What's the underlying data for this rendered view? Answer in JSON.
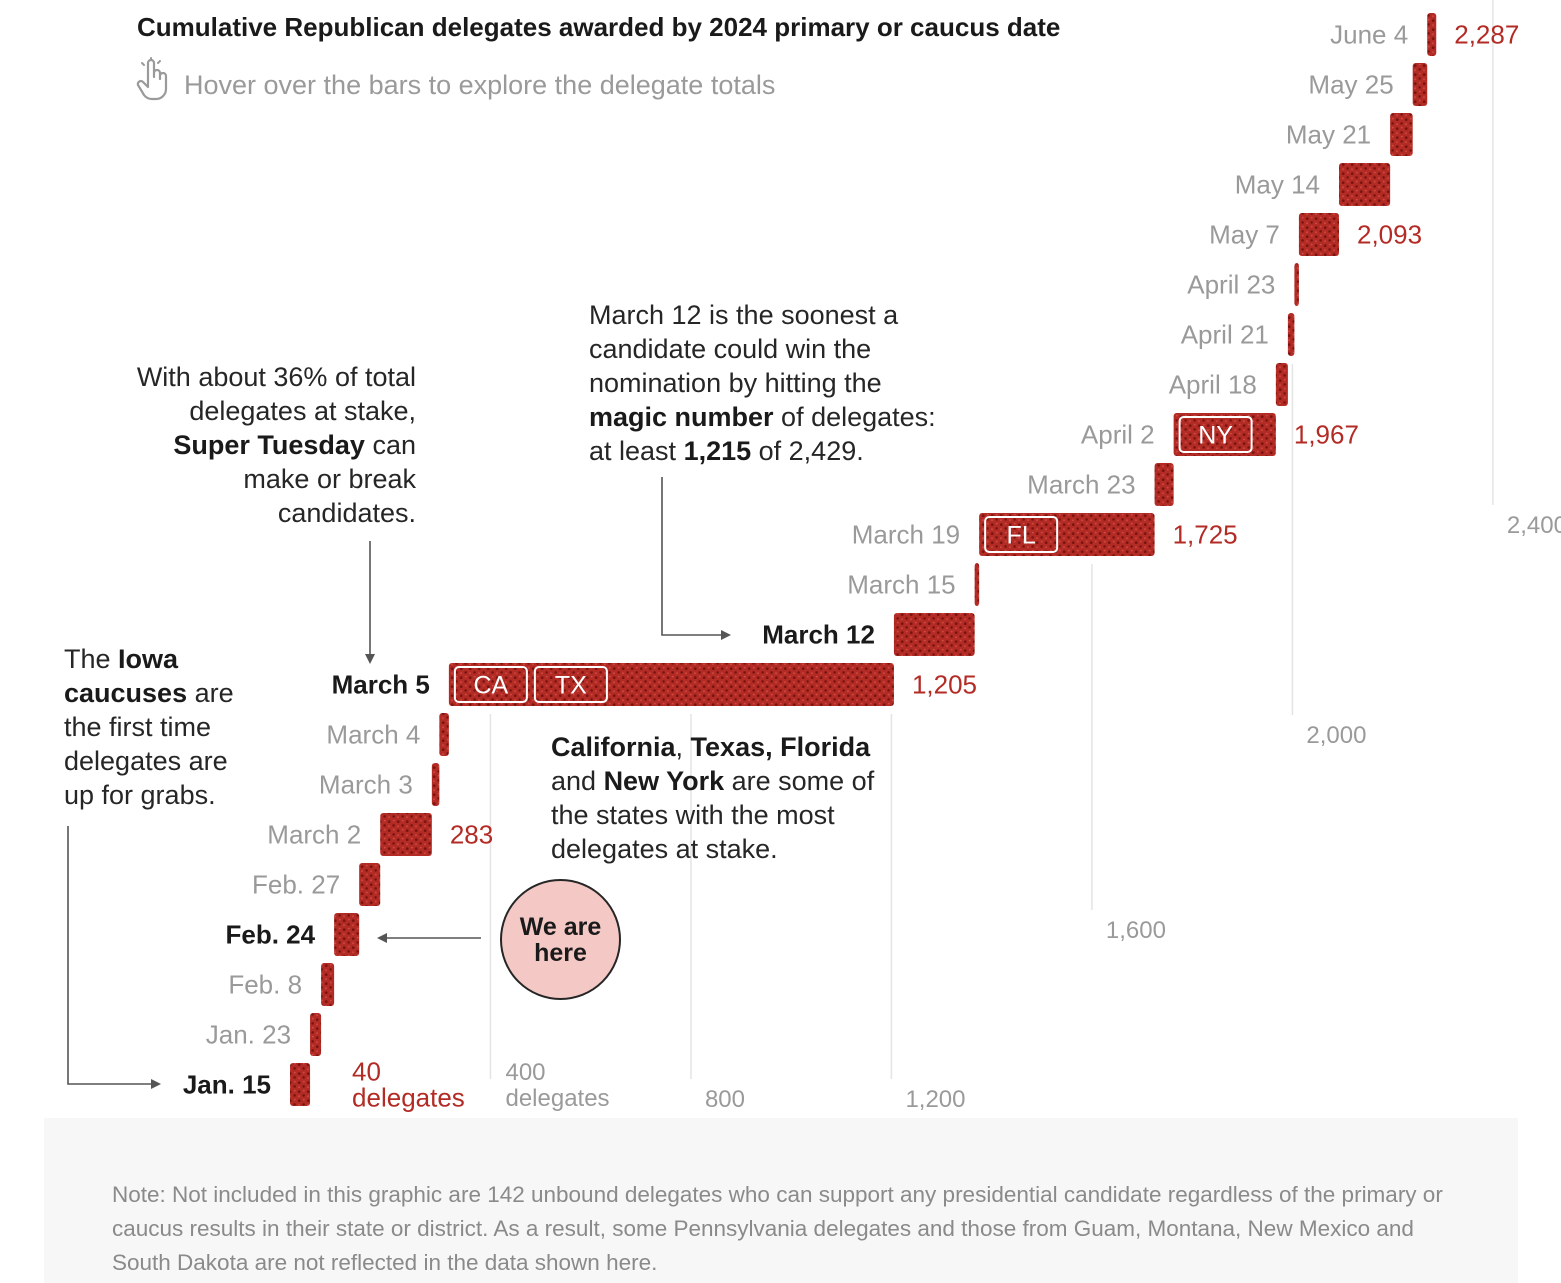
{
  "header": {
    "title": "Cumulative Republican delegates awarded by 2024 primary or caucus date",
    "hover_hint": "Hover over the bars to explore the delegate totals",
    "hover_icon": "pointer-hand-icon"
  },
  "annotations": {
    "super_tuesday": [
      "With about 36% of total",
      "delegates at stake,",
      "Super Tuesday can",
      "make or break",
      "candidates."
    ],
    "iowa": [
      "The Iowa",
      "caucuses are",
      "the first time",
      "delegates are",
      "up for grabs."
    ],
    "magic_number": [
      "March 12 is the soonest a",
      "candidate could win the",
      "nomination by hitting the",
      "magic number of delegates:",
      "at least 1,215 of 2,429."
    ],
    "states": [
      "California, Texas, Florida",
      "and New York are some of",
      "the states with the most",
      "delegates at stake."
    ],
    "we_are_here": "We are here"
  },
  "chart_data": {
    "type": "bar",
    "subtype": "waterfall-staircase",
    "title": "Cumulative Republican delegates awarded by 2024 primary or caucus date",
    "xlabel": "delegates",
    "xlim": [
      0,
      2429
    ],
    "grid": true,
    "x_ticks": [
      {
        "value": 400,
        "label": "400",
        "sublabel": "delegates"
      },
      {
        "value": 800,
        "label": "800"
      },
      {
        "value": 1200,
        "label": "1,200"
      },
      {
        "value": 1600,
        "label": "1,600"
      },
      {
        "value": 2000,
        "label": "2,000"
      },
      {
        "value": 2400,
        "label": "2,400"
      }
    ],
    "categories": [
      "Jan. 15",
      "Jan. 23",
      "Feb. 8",
      "Feb. 24",
      "Feb. 27",
      "March 2",
      "March 3",
      "March 4",
      "March 5",
      "March 12",
      "March 15",
      "March 19",
      "March 23",
      "April 2",
      "April 18",
      "April 21",
      "April 23",
      "May 7",
      "May 14",
      "May 21",
      "May 25",
      "June 4"
    ],
    "series": [
      {
        "values": [
          40,
          62,
          88,
          138,
          180,
          283,
          298,
          317,
          1205,
          1366,
          1375,
          1725,
          1763,
          1967,
          1991,
          2004,
          2013,
          2093,
          2195,
          2240,
          2269,
          2287
        ]
      }
    ],
    "highlighted_dates": [
      "Jan. 15",
      "Feb. 24",
      "March 5",
      "March 12"
    ],
    "value_labels": [
      {
        "date": "Jan. 15",
        "text": "40",
        "subtext": "delegates"
      },
      {
        "date": "March 2",
        "text": "283"
      },
      {
        "date": "March 5",
        "text": "1,205"
      },
      {
        "date": "March 19",
        "text": "1,725"
      },
      {
        "date": "April 2",
        "text": "1,967"
      },
      {
        "date": "May 7",
        "text": "2,093"
      },
      {
        "date": "June 4",
        "text": "2,287"
      }
    ],
    "state_tags": [
      {
        "date": "March 5",
        "labels": [
          "CA",
          "TX"
        ]
      },
      {
        "date": "March 19",
        "labels": [
          "FL"
        ]
      },
      {
        "date": "April 2",
        "labels": [
          "NY"
        ]
      }
    ],
    "colors": {
      "bar": "#b32b25",
      "bar_dots": "#7a1410",
      "value_label": "#b32b25",
      "highlight_label": "#1a1a1a",
      "date_label": "#9a9a9a",
      "grid": "#e4e4e4",
      "tick_label": "#9a9a9a"
    }
  },
  "footer": {
    "note": "Note: Not included in this graphic are 142 unbound delegates who can support any presidential candidate regardless of the primary or caucus results in their state or district. As a result, some Pennsylvania delegates and those from Guam, Montana, New Mexico and South Dakota are not reflected in the data shown here."
  }
}
